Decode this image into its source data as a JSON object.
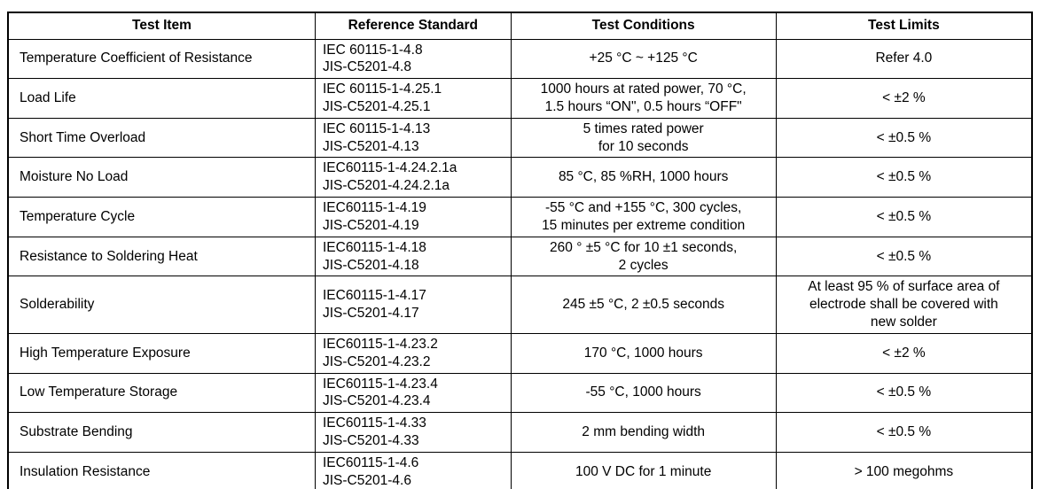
{
  "table": {
    "headers": [
      "Test Item",
      "Reference Standard",
      "Test Conditions",
      "Test Limits"
    ],
    "rows": [
      {
        "item": "Temperature Coefficient of Resistance",
        "standard": "IEC 60115-1-4.8\nJIS-C5201-4.8",
        "conditions": "+25 °C ~ +125 °C",
        "limits": "Refer 4.0"
      },
      {
        "item": "Load Life",
        "standard": "IEC 60115-1-4.25.1\nJIS-C5201-4.25.1",
        "conditions": "1000 hours at rated power, 70 °C,\n1.5 hours “ON\", 0.5 hours “OFF\"",
        "limits": "< ±2 %"
      },
      {
        "item": "Short Time Overload",
        "standard": "IEC 60115-1-4.13\nJIS-C5201-4.13",
        "conditions": "5 times rated power\nfor 10 seconds",
        "limits": "< ±0.5 %"
      },
      {
        "item": "Moisture No Load",
        "standard": "IEC60115-1-4.24.2.1a\nJIS-C5201-4.24.2.1a",
        "conditions": "85 °C, 85 %RH, 1000 hours",
        "limits": "< ±0.5 %"
      },
      {
        "item": "Temperature Cycle",
        "standard": "IEC60115-1-4.19\nJIS-C5201-4.19",
        "conditions": "-55 °C and +155 °C, 300 cycles,\n15 minutes per extreme condition",
        "limits": "< ±0.5 %"
      },
      {
        "item": "Resistance to Soldering Heat",
        "standard": "IEC60115-1-4.18\nJIS-C5201-4.18",
        "conditions": "260 ° ±5 °C for 10 ±1 seconds,\n2 cycles",
        "limits": "< ±0.5 %"
      },
      {
        "item": "Solderability",
        "standard": "IEC60115-1-4.17\nJIS-C5201-4.17",
        "conditions": "245 ±5 °C, 2 ±0.5 seconds",
        "limits": "At least 95 % of surface area of\nelectrode shall be covered with\nnew solder"
      },
      {
        "item": "High Temperature Exposure",
        "standard": "IEC60115-1-4.23.2\nJIS-C5201-4.23.2",
        "conditions": "170 °C, 1000 hours",
        "limits": "< ±2 %"
      },
      {
        "item": "Low Temperature Storage",
        "standard": "IEC60115-1-4.23.4\nJIS-C5201-4.23.4",
        "conditions": "-55 °C, 1000 hours",
        "limits": "< ±0.5 %"
      },
      {
        "item": "Substrate Bending",
        "standard": "IEC60115-1-4.33\nJIS-C5201-4.33",
        "conditions": "2 mm bending width",
        "limits": "< ±0.5 %"
      },
      {
        "item": "Insulation Resistance",
        "standard": "IEC60115-1-4.6\nJIS-C5201-4.6",
        "conditions": "100 V DC for 1 minute",
        "limits": "> 100 megohms"
      }
    ]
  }
}
